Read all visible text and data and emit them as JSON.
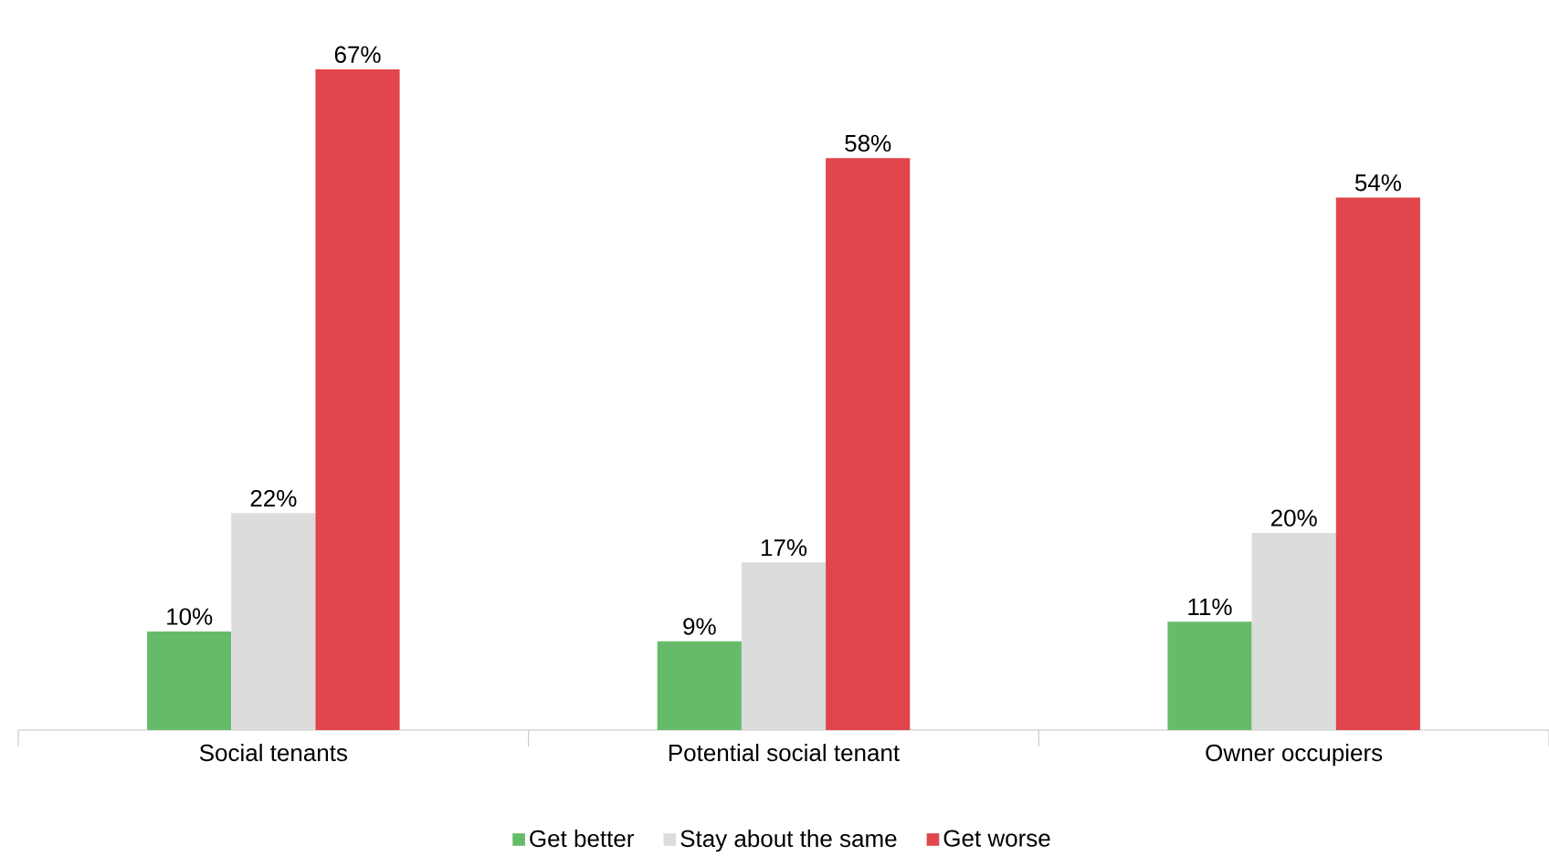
{
  "chart_data": {
    "type": "bar",
    "categories": [
      "Social tenants",
      "Potential social tenant",
      "Owner occupiers"
    ],
    "series": [
      {
        "name": "Get better",
        "color": "#66bb6a",
        "values": [
          10,
          9,
          11
        ],
        "value_labels": [
          "10%",
          "9%",
          "11%"
        ]
      },
      {
        "name": "Stay about the same",
        "color": "#dcdcdc",
        "values": [
          22,
          17,
          20
        ],
        "value_labels": [
          "22%",
          "17%",
          "20%"
        ]
      },
      {
        "name": "Get worse",
        "color": "#e0464b",
        "values": [
          67,
          58,
          54
        ],
        "value_labels": [
          "67%",
          "58%",
          "54%"
        ]
      }
    ],
    "legend": "bottom"
  }
}
